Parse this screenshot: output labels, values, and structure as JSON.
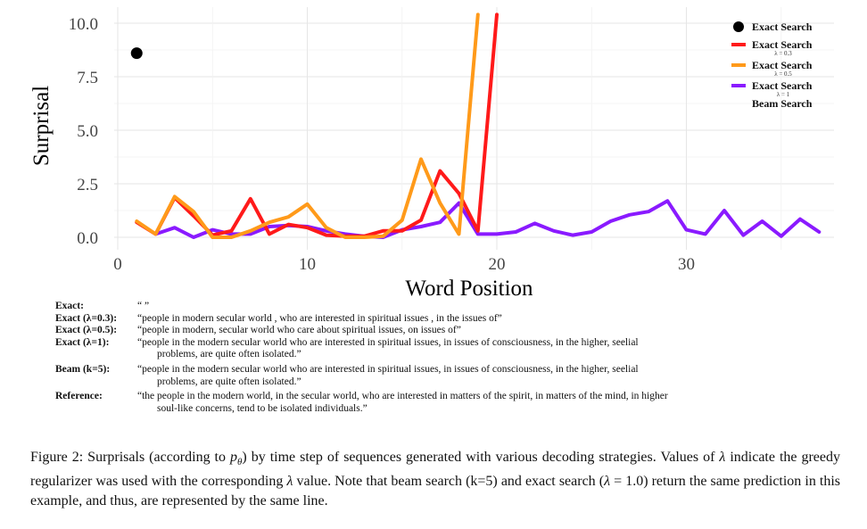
{
  "chart_data": {
    "type": "line",
    "xlabel": "Word Position",
    "ylabel": "Surprisal",
    "xlim": [
      -0.5,
      36
    ],
    "ylim": [
      -0.3,
      10.5
    ],
    "x_ticks": [
      "0",
      "10",
      "20",
      "30"
    ],
    "y_ticks": [
      "0.0",
      "2.5",
      "5.0",
      "7.5",
      "10.0"
    ],
    "grid": true,
    "legend_placement": "top-right",
    "series": [
      {
        "name": "Exact Search",
        "style": "point",
        "color": "#000000",
        "points": [
          [
            1,
            8.6
          ]
        ]
      },
      {
        "name": "Exact Search",
        "sublabel": "λ = 0.3",
        "style": "line",
        "color": "#ff1a1a",
        "points": [
          [
            1,
            0.7
          ],
          [
            2,
            0.15
          ],
          [
            3,
            1.85
          ],
          [
            4,
            1.0
          ],
          [
            5,
            0.1
          ],
          [
            6,
            0.3
          ],
          [
            7,
            1.8
          ],
          [
            8,
            0.15
          ],
          [
            9,
            0.6
          ],
          [
            10,
            0.45
          ],
          [
            11,
            0.1
          ],
          [
            12,
            0.05
          ],
          [
            13,
            0.05
          ],
          [
            14,
            0.3
          ],
          [
            15,
            0.3
          ],
          [
            16,
            0.8
          ],
          [
            17,
            3.1
          ],
          [
            18,
            2.05
          ],
          [
            19,
            0.3
          ],
          [
            20,
            10.4
          ]
        ]
      },
      {
        "name": "Exact Search",
        "sublabel": "λ = 0.5",
        "style": "line",
        "color": "#ff9a1a",
        "points": [
          [
            1,
            0.75
          ],
          [
            2,
            0.15
          ],
          [
            3,
            1.9
          ],
          [
            4,
            1.2
          ],
          [
            5,
            0.0
          ],
          [
            6,
            0.0
          ],
          [
            7,
            0.3
          ],
          [
            8,
            0.7
          ],
          [
            9,
            0.95
          ],
          [
            10,
            1.55
          ],
          [
            11,
            0.45
          ],
          [
            12,
            0.0
          ],
          [
            13,
            0.0
          ],
          [
            14,
            0.05
          ],
          [
            15,
            0.8
          ],
          [
            16,
            3.65
          ],
          [
            17,
            1.6
          ],
          [
            18,
            0.15
          ],
          [
            19,
            10.4
          ]
        ]
      },
      {
        "name": "Exact Search",
        "sublabel": "λ = 1",
        "name2": "Beam Search",
        "style": "line",
        "color": "#8a1aff",
        "points": [
          [
            2,
            0.15
          ],
          [
            3,
            0.45
          ],
          [
            4,
            0.0
          ],
          [
            5,
            0.35
          ],
          [
            6,
            0.15
          ],
          [
            7,
            0.15
          ],
          [
            8,
            0.5
          ],
          [
            9,
            0.55
          ],
          [
            10,
            0.5
          ],
          [
            11,
            0.3
          ],
          [
            12,
            0.15
          ],
          [
            13,
            0.05
          ],
          [
            14,
            0.0
          ],
          [
            15,
            0.35
          ],
          [
            16,
            0.5
          ],
          [
            17,
            0.7
          ],
          [
            18,
            1.6
          ],
          [
            19,
            0.15
          ],
          [
            20,
            0.15
          ],
          [
            21,
            0.25
          ],
          [
            22,
            0.65
          ],
          [
            23,
            0.3
          ],
          [
            24,
            0.1
          ],
          [
            25,
            0.25
          ],
          [
            26,
            0.75
          ],
          [
            27,
            1.05
          ],
          [
            28,
            1.2
          ],
          [
            29,
            1.7
          ],
          [
            30,
            0.35
          ],
          [
            31,
            0.15
          ],
          [
            32,
            1.25
          ],
          [
            33,
            0.1
          ],
          [
            34,
            0.75
          ],
          [
            35,
            0.05
          ],
          [
            36,
            0.85
          ],
          [
            37,
            0.25
          ]
        ]
      }
    ]
  },
  "decodes": [
    {
      "label": "Exact:",
      "text": "“ ”",
      "cont": ""
    },
    {
      "label": "Exact (λ=0.3):",
      "text": "“people in modern secular world , who are interested in spiritual issues , in the issues of”",
      "cont": ""
    },
    {
      "label": "Exact (λ=0.5):",
      "text": "“people in modern, secular world who care about spiritual issues, on issues of”",
      "cont": ""
    },
    {
      "label": "Exact (λ=1):",
      "text": "“people in the modern secular world who are interested in spiritual issues, in issues of consciousness, in the higher, seelial",
      "cont": "problems, are quite often isolated.”"
    },
    {
      "label": "Beam (k=5):",
      "text": "“people in the modern secular world who are interested in spiritual issues, in issues of consciousness, in the higher, seelial",
      "cont": "problems, are quite often isolated.”"
    },
    {
      "label": "Reference:",
      "text": "“the people in the modern world, in the secular world, who are interested in matters of the spirit, in matters of the mind, in higher",
      "cont": "soul-like concerns, tend to be isolated individuals.”"
    }
  ],
  "caption": {
    "p1": "Figure 2: Surprisals (according to ",
    "sym_p": "p",
    "sym_theta": "θ",
    "p2": ") by time step of sequences generated with various decoding strategies. Values of ",
    "sym_lambda1": "λ",
    "p3": " indicate the greedy regularizer was used with the corresponding ",
    "sym_lambda2": "λ",
    "p4": " value. Note that beam search (k=5) and exact search (",
    "sym_lambda3": "λ",
    "p5": " = 1.0) return the same prediction in this example, and thus, are represented by the same line."
  }
}
